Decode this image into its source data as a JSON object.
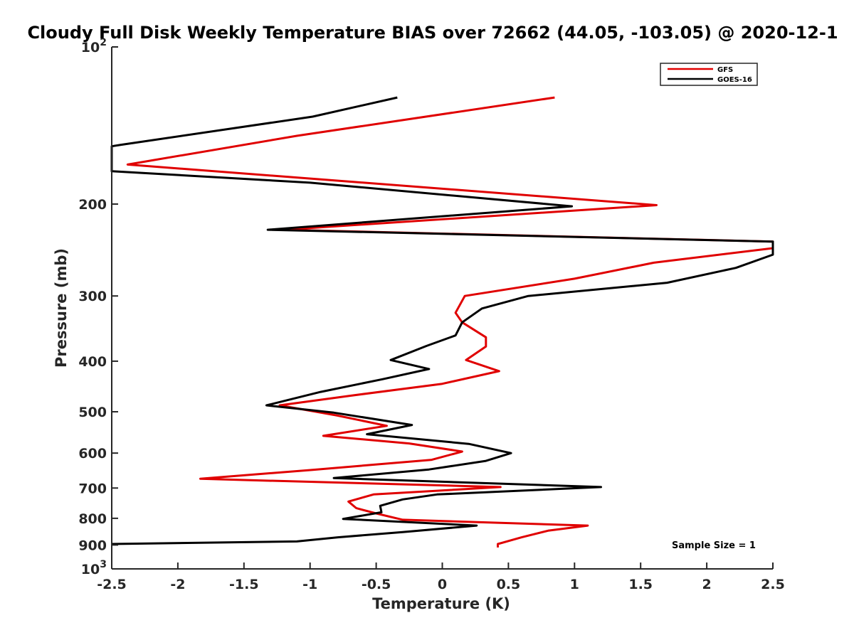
{
  "chart_data": {
    "type": "line",
    "title": "Cloudy Full Disk Weekly Temperature BIAS over 72662 (44.05, -103.05) @ 2020-12-1",
    "xlabel": "Temperature (K)",
    "ylabel": "Pressure (mb)",
    "xlim": [
      -2.5,
      2.5
    ],
    "ylim": [
      100,
      1000
    ],
    "y_scale": "log",
    "y_reversed": true,
    "grid": false,
    "legend_position": "top-right",
    "x_ticks": [
      "-2.5",
      "-2",
      "-1.5",
      "-1",
      "-0.5",
      "0",
      "0.5",
      "1",
      "1.5",
      "2",
      "2.5"
    ],
    "x_tick_values": [
      -2.5,
      -2,
      -1.5,
      -1,
      -0.5,
      0,
      0.5,
      1,
      1.5,
      2,
      2.5
    ],
    "y_tick_values": [
      100,
      200,
      300,
      400,
      500,
      600,
      700,
      800,
      900,
      1000
    ],
    "y_tick_labels": {
      "100": {
        "base": "10",
        "exp": "2"
      },
      "200": {
        "text": "200"
      },
      "300": {
        "text": "300"
      },
      "400": {
        "text": "400"
      },
      "500": {
        "text": "500"
      },
      "600": {
        "text": "600"
      },
      "700": {
        "text": "700"
      },
      "800": {
        "text": "800"
      },
      "900": {
        "text": "900"
      },
      "1000": {
        "base": "10",
        "exp": "3"
      }
    },
    "annotation": "Sample Size = 1",
    "series": [
      {
        "name": "GFS",
        "color": "#e00000",
        "points": [
          [
            0.85,
            125
          ],
          [
            -1.1,
            148
          ],
          [
            -2.38,
            168
          ],
          [
            1.62,
            201
          ],
          [
            -1.2,
            224
          ],
          [
            2.5,
            236
          ],
          [
            2.5,
            243
          ],
          [
            1.6,
            259
          ],
          [
            1.0,
            278
          ],
          [
            0.17,
            300
          ],
          [
            0.1,
            323
          ],
          [
            0.15,
            337
          ],
          [
            0.33,
            360
          ],
          [
            0.33,
            375
          ],
          [
            0.18,
            398
          ],
          [
            0.43,
            418
          ],
          [
            0.0,
            442
          ],
          [
            -0.7,
            466
          ],
          [
            -1.23,
            486
          ],
          [
            -0.8,
            508
          ],
          [
            -0.42,
            532
          ],
          [
            -0.9,
            556
          ],
          [
            -0.25,
            575
          ],
          [
            0.15,
            596
          ],
          [
            -0.08,
            618
          ],
          [
            -0.98,
            646
          ],
          [
            -1.83,
            672
          ],
          [
            0.44,
            697
          ],
          [
            -0.52,
            720
          ],
          [
            -0.71,
            743
          ],
          [
            -0.65,
            765
          ],
          [
            -0.5,
            783
          ],
          [
            -0.3,
            805
          ],
          [
            1.1,
            826
          ],
          [
            0.8,
            845
          ],
          [
            0.6,
            870
          ],
          [
            0.42,
            896
          ],
          [
            0.42,
            910
          ]
        ]
      },
      {
        "name": "GOES-16",
        "color": "#000000",
        "points": [
          [
            -0.34,
            125
          ],
          [
            -0.98,
            136
          ],
          [
            -2.43,
            154
          ],
          [
            -2.5,
            155
          ],
          [
            -2.5,
            173
          ],
          [
            -1.0,
            182
          ],
          [
            0.98,
            202
          ],
          [
            -1.32,
            224
          ],
          [
            2.5,
            236
          ],
          [
            2.5,
            250
          ],
          [
            2.22,
            265
          ],
          [
            1.7,
            283
          ],
          [
            0.65,
            300
          ],
          [
            0.3,
            317
          ],
          [
            0.15,
            337
          ],
          [
            0.1,
            357
          ],
          [
            -0.12,
            374
          ],
          [
            -0.39,
            398
          ],
          [
            -0.1,
            414
          ],
          [
            -0.45,
            433
          ],
          [
            -0.92,
            458
          ],
          [
            -1.33,
            486
          ],
          [
            -0.82,
            502
          ],
          [
            -0.23,
            530
          ],
          [
            -0.57,
            552
          ],
          [
            0.2,
            576
          ],
          [
            0.52,
            600
          ],
          [
            0.33,
            621
          ],
          [
            -0.1,
            645
          ],
          [
            -0.82,
            670
          ],
          [
            1.2,
            697
          ],
          [
            -0.04,
            720
          ],
          [
            -0.3,
            736
          ],
          [
            -0.47,
            757
          ],
          [
            -0.46,
            779
          ],
          [
            -0.75,
            802
          ],
          [
            0.26,
            826
          ],
          [
            -0.3,
            850
          ],
          [
            -0.79,
            870
          ],
          [
            -1.1,
            886
          ],
          [
            -2.5,
            896
          ]
        ]
      }
    ]
  }
}
